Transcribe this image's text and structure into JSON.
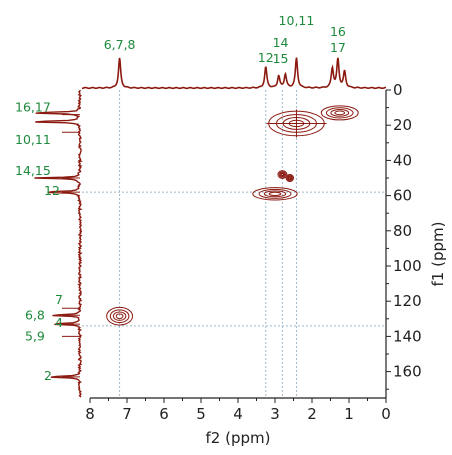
{
  "chart_data": {
    "type": "2d-nmr-hsqc",
    "title": "",
    "xlabel": "f2 (ppm)",
    "ylabel": "f1 (ppm)",
    "xlim": [
      8,
      0
    ],
    "ylim": [
      0,
      175
    ],
    "x_ticks": [
      "8",
      "7",
      "6",
      "5",
      "4",
      "3",
      "2",
      "1",
      "0"
    ],
    "y_ticks": [
      "0",
      "20",
      "40",
      "60",
      "80",
      "100",
      "120",
      "140",
      "160"
    ],
    "grid": false,
    "colors": {
      "trace": "#8b1a10",
      "labels": "#1e8a3c",
      "guides": "#9fb8cc",
      "axis": "#222222"
    },
    "proton_labels": [
      {
        "text": [
          "6,7,8"
        ],
        "ppm": 7.2
      },
      {
        "text": [
          "12"
        ],
        "ppm": 3.25
      },
      {
        "text": [
          "14",
          "15"
        ],
        "ppm": 2.85
      },
      {
        "text": [
          "10,11"
        ],
        "ppm": 2.42
      },
      {
        "text": [
          "16",
          "17"
        ],
        "ppm": 1.3
      }
    ],
    "carbon_labels": [
      {
        "text": [
          "16,17"
        ],
        "ppm": 14
      },
      {
        "text": [
          "10,11"
        ],
        "ppm": 24
      },
      {
        "text": [
          "14,15"
        ],
        "ppm": 50
      },
      {
        "text": [
          "12"
        ],
        "ppm": 58
      },
      {
        "text": [
          "7"
        ],
        "ppm": 124
      },
      {
        "text": [
          "6,8"
        ],
        "ppm": 128
      },
      {
        "text": [
          "4"
        ],
        "ppm": 133
      },
      {
        "text": [
          "5,9"
        ],
        "ppm": 140
      },
      {
        "text": [
          "2"
        ],
        "ppm": 163
      }
    ],
    "proton_peaks": [
      {
        "ppm": 7.2,
        "height": 1.0
      },
      {
        "ppm": 3.25,
        "height": 0.7
      },
      {
        "ppm": 2.9,
        "height": 0.4
      },
      {
        "ppm": 2.72,
        "height": 0.45
      },
      {
        "ppm": 2.42,
        "height": 1.0
      },
      {
        "ppm": 1.45,
        "height": 0.65
      },
      {
        "ppm": 1.3,
        "height": 0.95
      },
      {
        "ppm": 1.12,
        "height": 0.55
      }
    ],
    "carbon_peaks": [
      {
        "ppm": 13,
        "height": 1.0
      },
      {
        "ppm": 18,
        "height": 1.0
      },
      {
        "ppm": 50,
        "height": 0.8
      },
      {
        "ppm": 58,
        "height": 0.75
      },
      {
        "ppm": 128,
        "height": 0.6
      },
      {
        "ppm": 133,
        "height": 0.6
      },
      {
        "ppm": 163,
        "height": 0.65
      }
    ],
    "cross_peaks": [
      {
        "f2": 2.42,
        "f1": 19,
        "w": 0.75,
        "h": 7
      },
      {
        "f2": 1.25,
        "f1": 13,
        "w": 0.5,
        "h": 4
      },
      {
        "f2": 3.0,
        "f1": 59,
        "w": 0.6,
        "h": 3.5
      },
      {
        "f2": 2.8,
        "f1": 48,
        "w": 0.12,
        "h": 2.2
      },
      {
        "f2": 2.6,
        "f1": 50,
        "w": 0.1,
        "h": 2
      },
      {
        "f2": 7.2,
        "f1": 128.5,
        "w": 0.35,
        "h": 5
      }
    ],
    "guide_lines_f2": [
      7.2,
      3.25,
      2.8,
      2.42
    ],
    "guide_lines_f1": [
      58,
      134
    ]
  }
}
